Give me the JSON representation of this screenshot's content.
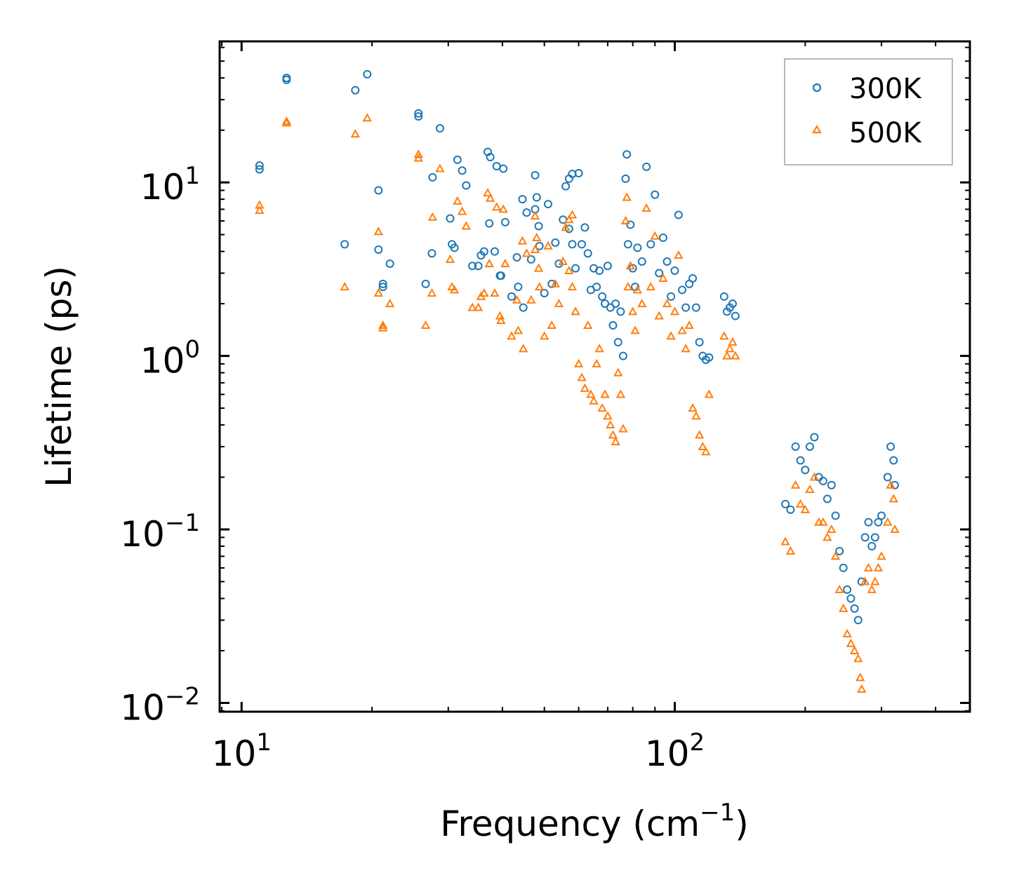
{
  "chart_data": {
    "type": "scatter",
    "xlabel_main": "Frequency (cm",
    "xlabel_sup": "−1",
    "xlabel_end": ")",
    "ylabel": "Lifetime (ps)",
    "xscale": "log",
    "yscale": "log",
    "xlim": [
      8.9,
      480
    ],
    "ylim": [
      0.0089,
      65
    ],
    "x_ticks": [
      {
        "value": 10,
        "base": "10",
        "exp": "1"
      },
      {
        "value": 100,
        "base": "10",
        "exp": "2"
      }
    ],
    "y_ticks": [
      {
        "value": 0.01,
        "base": "10",
        "exp": "−2"
      },
      {
        "value": 0.1,
        "base": "10",
        "exp": "−1"
      },
      {
        "value": 1,
        "base": "10",
        "exp": "0"
      },
      {
        "value": 10,
        "base": "10",
        "exp": "1"
      }
    ],
    "legend_position": "top-right",
    "series": [
      {
        "name": "300K",
        "marker": "circle",
        "color": "#1f77b4",
        "points": [
          [
            11.0,
            12.5
          ],
          [
            11.0,
            11.9
          ],
          [
            12.7,
            40
          ],
          [
            12.7,
            39
          ],
          [
            18.3,
            34
          ],
          [
            19.5,
            42
          ],
          [
            17.3,
            4.4
          ],
          [
            20.7,
            9.0
          ],
          [
            20.7,
            4.1
          ],
          [
            21.2,
            2.6
          ],
          [
            21.2,
            2.5
          ],
          [
            22.0,
            3.4
          ],
          [
            25.6,
            25
          ],
          [
            25.6,
            24
          ],
          [
            26.6,
            2.6
          ],
          [
            27.6,
            10.7
          ],
          [
            27.5,
            3.9
          ],
          [
            28.7,
            20.5
          ],
          [
            30.3,
            6.2
          ],
          [
            30.6,
            4.4
          ],
          [
            31.0,
            4.2
          ],
          [
            31.5,
            13.5
          ],
          [
            32.3,
            11.7
          ],
          [
            33.0,
            9.6
          ],
          [
            34.1,
            3.3
          ],
          [
            35.2,
            3.3
          ],
          [
            35.7,
            3.8
          ],
          [
            36.3,
            4.0
          ],
          [
            37.0,
            15
          ],
          [
            37.5,
            14
          ],
          [
            37.3,
            5.8
          ],
          [
            38.4,
            4.0
          ],
          [
            38.8,
            12.4
          ],
          [
            39.5,
            2.9
          ],
          [
            39.7,
            2.9
          ],
          [
            40.2,
            12
          ],
          [
            40.6,
            5.9
          ],
          [
            42.0,
            2.2
          ],
          [
            43.2,
            3.7
          ],
          [
            43.5,
            2.5
          ],
          [
            44.5,
            8.0
          ],
          [
            44.7,
            1.9
          ],
          [
            45.5,
            6.7
          ],
          [
            46.6,
            3.6
          ],
          [
            47.6,
            11
          ],
          [
            47.6,
            7.0
          ],
          [
            48.0,
            8.2
          ],
          [
            48.5,
            5.6
          ],
          [
            48.7,
            4.3
          ],
          [
            50.0,
            2.3
          ],
          [
            51.0,
            7.5
          ],
          [
            52.0,
            2.6
          ],
          [
            53.0,
            4.5
          ],
          [
            54.0,
            3.4
          ],
          [
            55.2,
            6.1
          ],
          [
            56.0,
            9.5
          ],
          [
            57.0,
            10.5
          ],
          [
            57.0,
            5.4
          ],
          [
            58.0,
            11.2
          ],
          [
            58.0,
            4.4
          ],
          [
            59.0,
            3.2
          ],
          [
            60.0,
            11.3
          ],
          [
            61.0,
            4.4
          ],
          [
            62.0,
            5.5
          ],
          [
            63.0,
            3.9
          ],
          [
            64.0,
            2.4
          ],
          [
            65.0,
            3.2
          ],
          [
            66.0,
            2.5
          ],
          [
            67.0,
            3.1
          ],
          [
            68.0,
            2.2
          ],
          [
            69.0,
            2.0
          ],
          [
            70.0,
            3.3
          ],
          [
            71.0,
            1.9
          ],
          [
            72.0,
            1.5
          ],
          [
            73.0,
            2.0
          ],
          [
            74.0,
            1.2
          ],
          [
            75.0,
            1.8
          ],
          [
            76.0,
            1.0
          ],
          [
            77.0,
            10.5
          ],
          [
            77.5,
            14.5
          ],
          [
            78.0,
            4.4
          ],
          [
            79.0,
            5.7
          ],
          [
            80.0,
            3.2
          ],
          [
            81.0,
            2.5
          ],
          [
            82.0,
            4.2
          ],
          [
            84.0,
            3.5
          ],
          [
            86.0,
            12.3
          ],
          [
            88.0,
            4.4
          ],
          [
            90.0,
            8.5
          ],
          [
            92.0,
            3.0
          ],
          [
            94.0,
            4.8
          ],
          [
            96.0,
            3.5
          ],
          [
            98.0,
            2.2
          ],
          [
            100.0,
            3.1
          ],
          [
            102.0,
            6.5
          ],
          [
            104.0,
            2.4
          ],
          [
            106.0,
            1.9
          ],
          [
            108.0,
            2.6
          ],
          [
            110.0,
            2.8
          ],
          [
            112.0,
            1.9
          ],
          [
            114.0,
            1.2
          ],
          [
            116.0,
            1.0
          ],
          [
            118.0,
            0.95
          ],
          [
            120.0,
            0.98
          ],
          [
            130.0,
            2.2
          ],
          [
            132.0,
            1.8
          ],
          [
            134.0,
            1.9
          ],
          [
            136.0,
            2.0
          ],
          [
            138.0,
            1.7
          ],
          [
            180.0,
            0.14
          ],
          [
            185.0,
            0.13
          ],
          [
            190.0,
            0.3
          ],
          [
            195.0,
            0.25
          ],
          [
            200.0,
            0.22
          ],
          [
            205.0,
            0.3
          ],
          [
            210.0,
            0.34
          ],
          [
            215.0,
            0.2
          ],
          [
            220.0,
            0.19
          ],
          [
            225.0,
            0.15
          ],
          [
            230.0,
            0.18
          ],
          [
            235.0,
            0.12
          ],
          [
            240.0,
            0.075
          ],
          [
            245.0,
            0.06
          ],
          [
            250.0,
            0.045
          ],
          [
            255.0,
            0.04
          ],
          [
            260.0,
            0.035
          ],
          [
            265.0,
            0.03
          ],
          [
            270.0,
            0.05
          ],
          [
            275.0,
            0.09
          ],
          [
            280.0,
            0.11
          ],
          [
            285.0,
            0.08
          ],
          [
            290.0,
            0.09
          ],
          [
            295.0,
            0.11
          ],
          [
            300.0,
            0.12
          ],
          [
            310.0,
            0.2
          ],
          [
            315.0,
            0.3
          ],
          [
            320.0,
            0.25
          ],
          [
            322.0,
            0.18
          ]
        ]
      },
      {
        "name": "500K",
        "marker": "triangle",
        "color": "#ff7f0e",
        "points": [
          [
            11.0,
            7.4
          ],
          [
            11.0,
            6.9
          ],
          [
            12.7,
            22.5
          ],
          [
            12.7,
            22.0
          ],
          [
            18.3,
            19.0
          ],
          [
            19.5,
            23.5
          ],
          [
            17.3,
            2.5
          ],
          [
            20.7,
            5.2
          ],
          [
            20.7,
            2.3
          ],
          [
            21.2,
            1.5
          ],
          [
            21.2,
            1.45
          ],
          [
            22.0,
            2.0
          ],
          [
            25.6,
            14.5
          ],
          [
            25.6,
            13.8
          ],
          [
            26.6,
            1.5
          ],
          [
            27.6,
            6.3
          ],
          [
            27.5,
            2.3
          ],
          [
            28.7,
            12.0
          ],
          [
            30.3,
            3.6
          ],
          [
            30.6,
            2.5
          ],
          [
            31.0,
            2.4
          ],
          [
            31.5,
            7.8
          ],
          [
            32.3,
            6.8
          ],
          [
            33.0,
            5.6
          ],
          [
            34.1,
            1.9
          ],
          [
            35.2,
            1.9
          ],
          [
            35.7,
            2.2
          ],
          [
            36.3,
            2.3
          ],
          [
            37.0,
            8.7
          ],
          [
            37.5,
            8.1
          ],
          [
            37.3,
            3.4
          ],
          [
            38.4,
            2.3
          ],
          [
            38.8,
            7.2
          ],
          [
            39.5,
            1.7
          ],
          [
            39.7,
            1.6
          ],
          [
            40.2,
            7.0
          ],
          [
            40.6,
            3.4
          ],
          [
            42.0,
            1.3
          ],
          [
            43.2,
            2.1
          ],
          [
            43.5,
            1.4
          ],
          [
            44.5,
            4.6
          ],
          [
            44.7,
            1.1
          ],
          [
            45.5,
            3.9
          ],
          [
            46.6,
            2.1
          ],
          [
            47.6,
            6.4
          ],
          [
            47.6,
            4.1
          ],
          [
            48.0,
            4.8
          ],
          [
            48.5,
            3.2
          ],
          [
            48.7,
            2.5
          ],
          [
            50.0,
            1.3
          ],
          [
            51.0,
            4.3
          ],
          [
            52.0,
            1.5
          ],
          [
            53.0,
            2.6
          ],
          [
            54.0,
            2.0
          ],
          [
            55.2,
            3.5
          ],
          [
            56.0,
            5.5
          ],
          [
            57.0,
            6.1
          ],
          [
            57.0,
            3.1
          ],
          [
            58.0,
            6.5
          ],
          [
            58.0,
            2.5
          ],
          [
            59.0,
            1.8
          ],
          [
            60.0,
            0.9
          ],
          [
            61.0,
            0.75
          ],
          [
            62.0,
            0.65
          ],
          [
            63.0,
            1.5
          ],
          [
            64.0,
            0.6
          ],
          [
            65.0,
            0.55
          ],
          [
            66.0,
            0.9
          ],
          [
            67.0,
            1.1
          ],
          [
            68.0,
            0.5
          ],
          [
            69.0,
            0.6
          ],
          [
            70.0,
            0.45
          ],
          [
            71.0,
            0.4
          ],
          [
            72.0,
            0.35
          ],
          [
            73.0,
            0.32
          ],
          [
            74.0,
            0.8
          ],
          [
            75.0,
            0.6
          ],
          [
            76.0,
            0.38
          ],
          [
            77.0,
            6.0
          ],
          [
            77.5,
            8.2
          ],
          [
            78.0,
            2.5
          ],
          [
            79.0,
            3.3
          ],
          [
            80.0,
            1.8
          ],
          [
            81.0,
            1.4
          ],
          [
            82.0,
            2.4
          ],
          [
            84.0,
            2.0
          ],
          [
            86.0,
            7.1
          ],
          [
            88.0,
            2.5
          ],
          [
            90.0,
            4.9
          ],
          [
            92.0,
            1.7
          ],
          [
            94.0,
            2.8
          ],
          [
            96.0,
            2.0
          ],
          [
            98.0,
            1.3
          ],
          [
            100.0,
            1.8
          ],
          [
            102.0,
            3.8
          ],
          [
            104.0,
            1.4
          ],
          [
            106.0,
            1.1
          ],
          [
            108.0,
            1.5
          ],
          [
            110.0,
            0.5
          ],
          [
            112.0,
            0.45
          ],
          [
            114.0,
            0.35
          ],
          [
            116.0,
            0.3
          ],
          [
            118.0,
            0.28
          ],
          [
            120.0,
            0.6
          ],
          [
            130.0,
            1.3
          ],
          [
            132.0,
            1.0
          ],
          [
            134.0,
            1.1
          ],
          [
            136.0,
            1.2
          ],
          [
            138.0,
            1.0
          ],
          [
            180.0,
            0.085
          ],
          [
            185.0,
            0.075
          ],
          [
            190.0,
            0.18
          ],
          [
            195.0,
            0.14
          ],
          [
            200.0,
            0.13
          ],
          [
            205.0,
            0.17
          ],
          [
            210.0,
            0.2
          ],
          [
            215.0,
            0.11
          ],
          [
            220.0,
            0.11
          ],
          [
            225.0,
            0.09
          ],
          [
            230.0,
            0.1
          ],
          [
            235.0,
            0.07
          ],
          [
            240.0,
            0.045
          ],
          [
            245.0,
            0.035
          ],
          [
            250.0,
            0.025
          ],
          [
            255.0,
            0.022
          ],
          [
            260.0,
            0.02
          ],
          [
            265.0,
            0.018
          ],
          [
            268.0,
            0.014
          ],
          [
            270.0,
            0.012
          ],
          [
            275.0,
            0.05
          ],
          [
            280.0,
            0.06
          ],
          [
            285.0,
            0.045
          ],
          [
            290.0,
            0.05
          ],
          [
            295.0,
            0.06
          ],
          [
            300.0,
            0.07
          ],
          [
            310.0,
            0.11
          ],
          [
            315.0,
            0.18
          ],
          [
            320.0,
            0.15
          ],
          [
            322.0,
            0.1
          ]
        ]
      }
    ]
  }
}
